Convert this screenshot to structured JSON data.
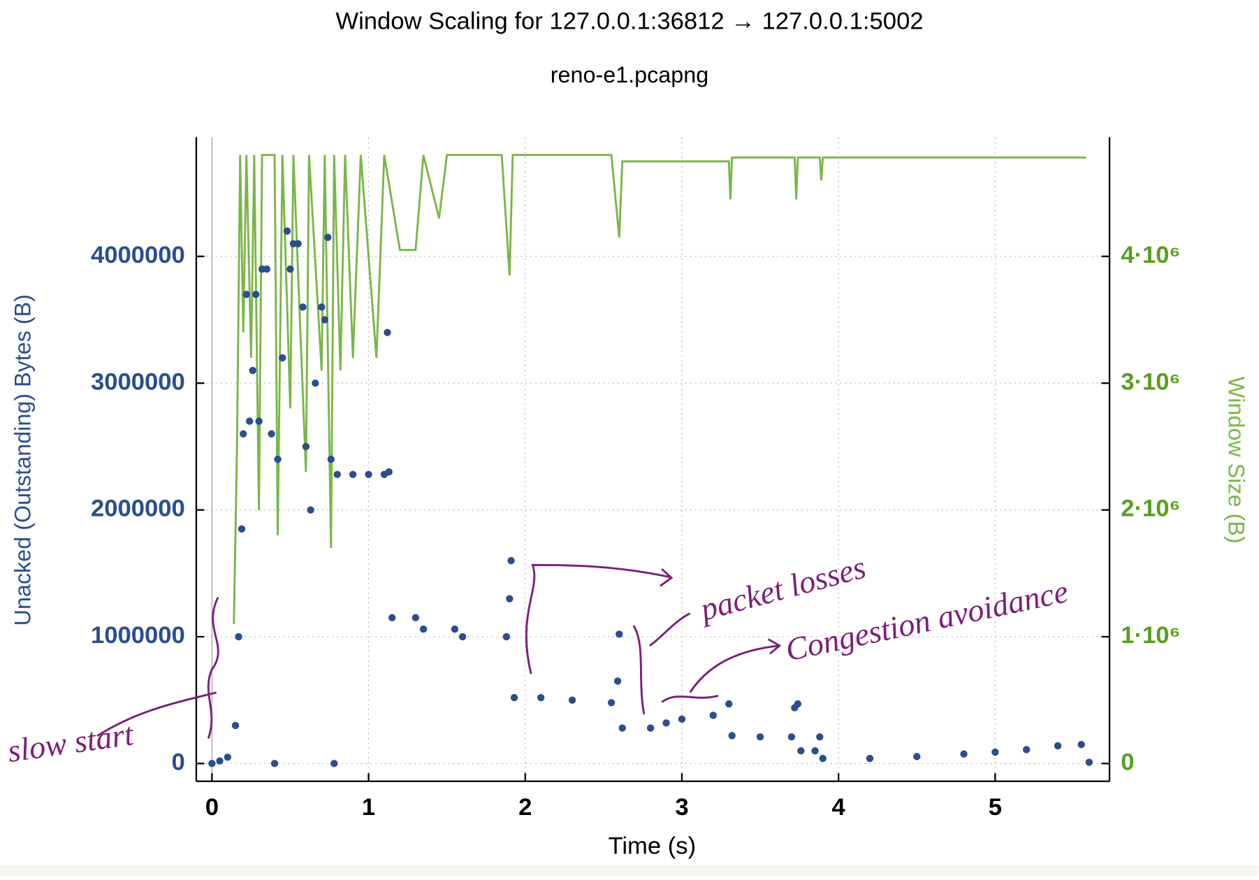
{
  "chart_data": {
    "type": "scatter",
    "title": "Window Scaling for 127.0.0.1:36812 → 127.0.0.1:5002",
    "subtitle": "reno-e1.pcapng",
    "xlabel": "Time (s)",
    "ylabel": "Unacked (Outstanding) Bytes (B)",
    "y2label": "Window Size (B)",
    "xlim": [
      -0.1,
      5.73
    ],
    "xticks": [
      0,
      1,
      2,
      3,
      4,
      5
    ],
    "ylim": [
      -140000,
      4940000
    ],
    "yticks": [
      0,
      1000000,
      2000000,
      3000000,
      4000000
    ],
    "y2lim": [
      -140000,
      4940000
    ],
    "y2ticks": [
      {
        "value": 0,
        "label": "0"
      },
      {
        "value": 1000000,
        "label": "1·10⁶"
      },
      {
        "value": 2000000,
        "label": "2·10⁶"
      },
      {
        "value": 3000000,
        "label": "3·10⁶"
      },
      {
        "value": 4000000,
        "label": "4·10⁶"
      }
    ],
    "grid": true,
    "series": [
      {
        "color": "#2b4e8c",
        "mark": "dots",
        "x": [
          0.0,
          0.05,
          0.1,
          0.15,
          0.17,
          0.19,
          0.2,
          0.22,
          0.24,
          0.26,
          0.28,
          0.3,
          0.32,
          0.35,
          0.38,
          0.4,
          0.42,
          0.45,
          0.48,
          0.5,
          0.52,
          0.55,
          0.58,
          0.6,
          0.63,
          0.66,
          0.7,
          0.72,
          0.74,
          0.76,
          0.78,
          0.8,
          0.9,
          1.0,
          1.1,
          1.12,
          1.13,
          1.15,
          1.3,
          1.35,
          1.55,
          1.6,
          1.88,
          1.9,
          1.91,
          1.93,
          2.1,
          2.3,
          2.55,
          2.59,
          2.6,
          2.62,
          2.8,
          2.9,
          3.0,
          3.2,
          3.3,
          3.32,
          3.5,
          3.7,
          3.72,
          3.74,
          3.76,
          3.85,
          3.88,
          3.9,
          4.2,
          4.5,
          4.8,
          5.0,
          5.2,
          5.4,
          5.55,
          5.6
        ],
        "values": [
          0,
          20000,
          50000,
          300000,
          1000000,
          1850000,
          2600000,
          3700000,
          2700000,
          3100000,
          3700000,
          2700000,
          3900000,
          3900000,
          2600000,
          0,
          2400000,
          3200000,
          4200000,
          3900000,
          4100000,
          4100000,
          3600000,
          2500000,
          2000000,
          3000000,
          3600000,
          3500000,
          4150000,
          2400000,
          0,
          2280000,
          2280000,
          2280000,
          2280000,
          3400000,
          2300000,
          1150000,
          1150000,
          1060000,
          1060000,
          1000000,
          1000000,
          1300000,
          1600000,
          520000,
          520000,
          500000,
          480000,
          650000,
          1020000,
          280000,
          280000,
          320000,
          350000,
          380000,
          470000,
          220000,
          210000,
          210000,
          440000,
          470000,
          100000,
          100000,
          210000,
          40000,
          40000,
          55000,
          75000,
          90000,
          110000,
          140000,
          150000,
          10000
        ]
      },
      {
        "color": "#7ab648",
        "mark": "line",
        "axis": "y2",
        "x": [
          0.14,
          0.16,
          0.18,
          0.2,
          0.22,
          0.25,
          0.27,
          0.3,
          0.32,
          0.4,
          0.42,
          0.45,
          0.5,
          0.52,
          0.6,
          0.62,
          0.7,
          0.72,
          0.76,
          0.78,
          0.82,
          0.85,
          0.9,
          0.95,
          1.05,
          1.1,
          1.2,
          1.3,
          1.35,
          1.45,
          1.5,
          1.85,
          1.9,
          1.92,
          2.55,
          2.6,
          2.62,
          3.3,
          3.31,
          3.32,
          3.72,
          3.73,
          3.74,
          3.88,
          3.89,
          3.9,
          5.58
        ],
        "values": [
          1100000,
          2500000,
          4800000,
          3400000,
          4800000,
          3200000,
          4800000,
          2000000,
          4800000,
          4800000,
          1800000,
          4800000,
          2800000,
          4800000,
          2300000,
          4800000,
          3100000,
          4800000,
          1700000,
          4800000,
          3100000,
          4800000,
          3200000,
          4800000,
          3200000,
          4800000,
          4050000,
          4050000,
          4800000,
          4300000,
          4800000,
          4800000,
          3850000,
          4800000,
          4800000,
          4150000,
          4750000,
          4750000,
          4450000,
          4780000,
          4780000,
          4450000,
          4780000,
          4780000,
          4600000,
          4780000,
          4780000
        ]
      }
    ],
    "annotations": [
      "slow start",
      "packet losses",
      "Congestion avoidance"
    ]
  }
}
